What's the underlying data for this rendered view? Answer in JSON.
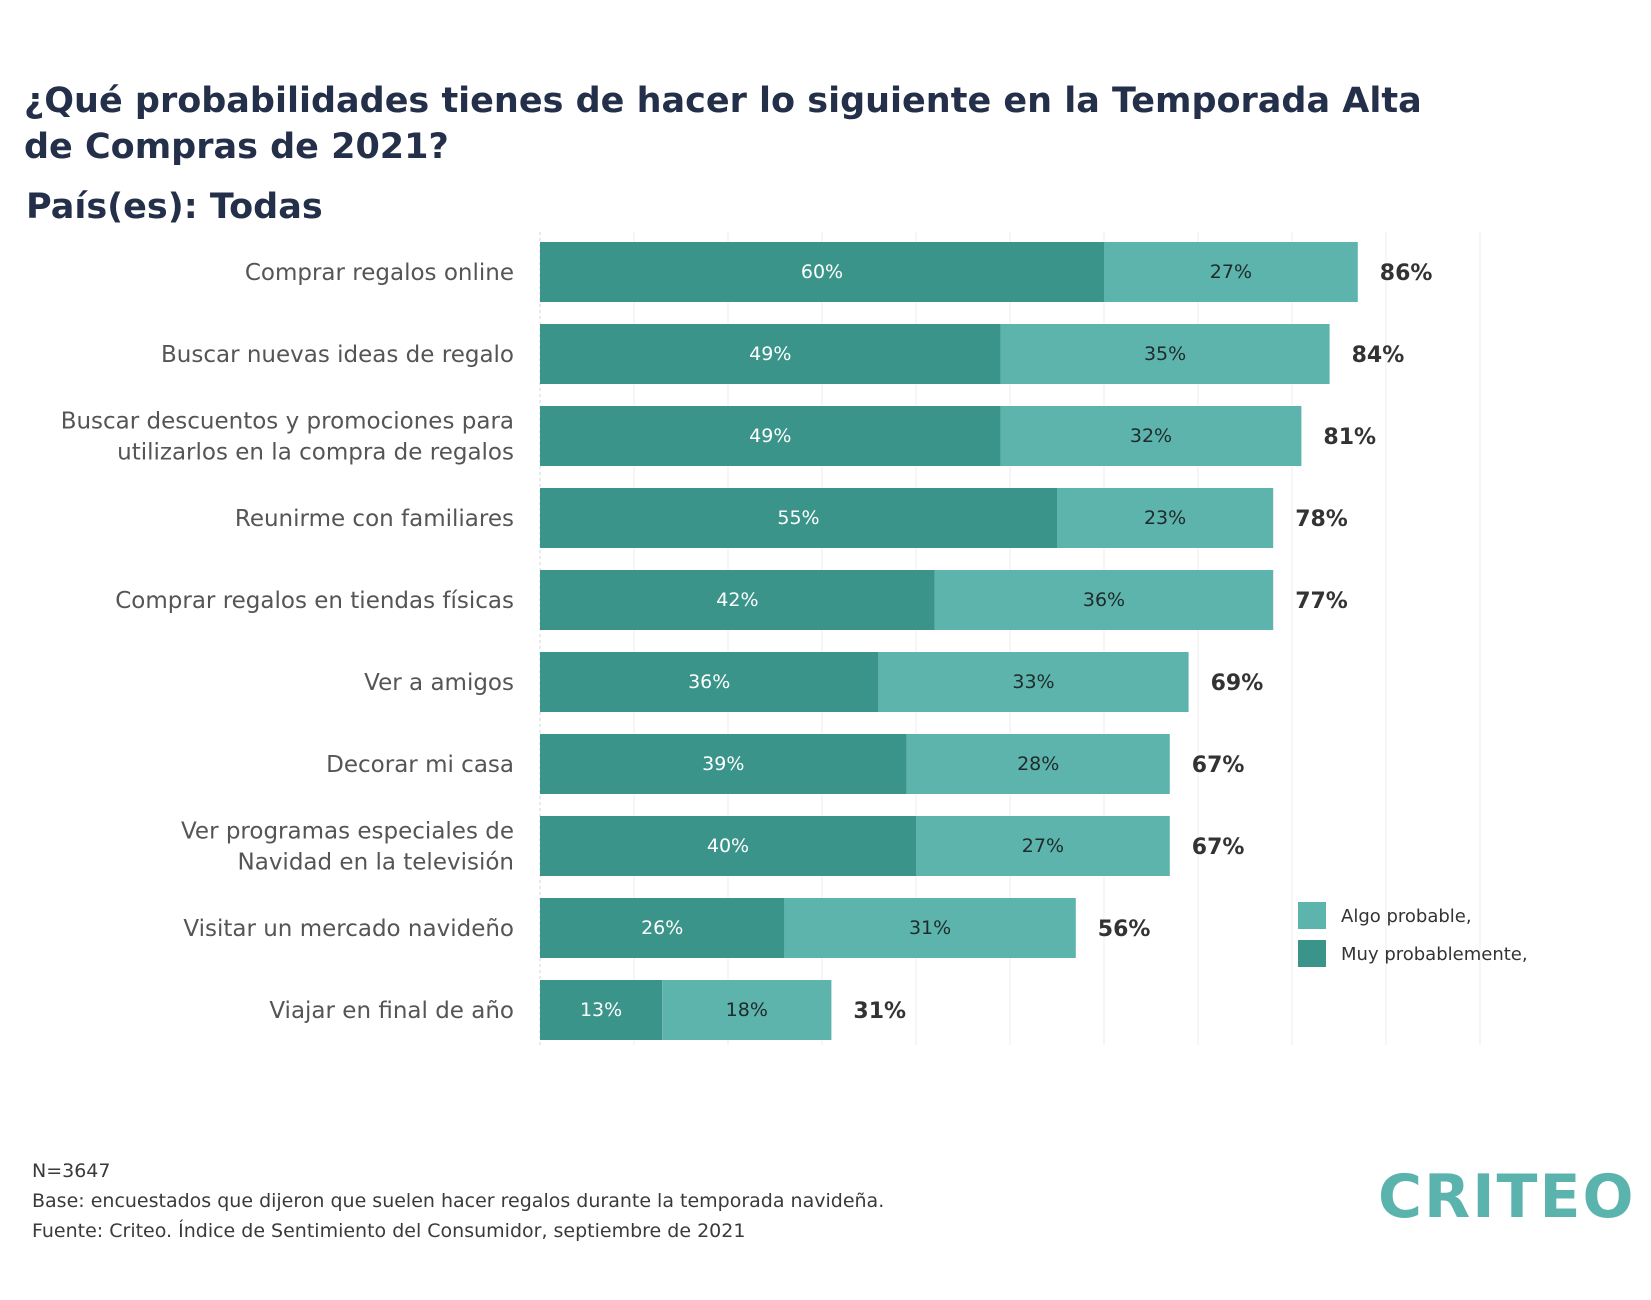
{
  "title": "¿Qué probabilidades tienes de hacer lo siguiente en la Temporada Alta de Compras de 2021?",
  "subtitle": "País(es): Todas",
  "colors": {
    "muy": "#3a9489",
    "algo": "#5db4ad",
    "text": "#555555",
    "total": "#333333"
  },
  "chart_data": {
    "type": "bar",
    "orientation": "horizontal",
    "stacked": true,
    "categories": [
      [
        "Comprar regalos online"
      ],
      [
        "Buscar nuevas ideas de regalo"
      ],
      [
        "Buscar descuentos y promociones para",
        "utilizarlos en la compra de regalos"
      ],
      [
        "Reunirme con familiares"
      ],
      [
        "Comprar regalos en tiendas físicas"
      ],
      [
        "Ver a amigos"
      ],
      [
        "Decorar mi casa"
      ],
      [
        "Ver programas especiales de",
        "Navidad en la televisión"
      ],
      [
        "Visitar un mercado navideño"
      ],
      [
        "Viajar en final de año"
      ]
    ],
    "series": [
      {
        "name": "Muy probablemente,",
        "values": [
          60,
          49,
          49,
          55,
          42,
          36,
          39,
          40,
          26,
          13
        ],
        "labels": [
          "60%",
          "49%",
          "49%",
          "55%",
          "42%",
          "36%",
          "39%",
          "40%",
          "26%",
          "13%"
        ]
      },
      {
        "name": "Algo probable,",
        "values": [
          27,
          35,
          32,
          23,
          36,
          33,
          28,
          27,
          31,
          18
        ],
        "labels": [
          "27%",
          "35%",
          "32%",
          "23%",
          "36%",
          "33%",
          "28%",
          "27%",
          "31%",
          "18%"
        ]
      }
    ],
    "totals": [
      86,
      84,
      81,
      78,
      77,
      69,
      67,
      67,
      56,
      31
    ],
    "total_labels": [
      "86%",
      "84%",
      "81%",
      "78%",
      "77%",
      "69%",
      "67%",
      "67%",
      "56%",
      "31%"
    ],
    "xlim": [
      0,
      100
    ],
    "grid": true,
    "legend_position": "right",
    "legend": [
      "Algo probable,",
      "Muy probablemente,"
    ]
  },
  "footer": {
    "n": "N=3647",
    "base": "Base: encuestados que dijeron que suelen hacer regalos durante la temporada navideña.",
    "source": "Fuente: Criteo. Índice de Sentimiento del Consumidor, septiembre de 2021"
  },
  "logo": "CRITEO"
}
